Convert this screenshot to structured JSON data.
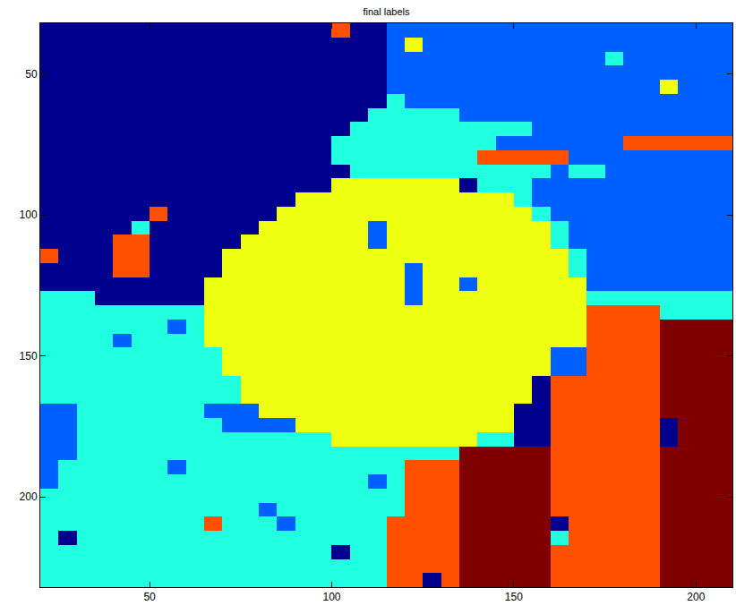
{
  "chart_data": {
    "type": "heatmap",
    "title": "final labels",
    "x": [
      22.5,
      27.5,
      32.5,
      37.5,
      42.5,
      47.5,
      52.5,
      57.5,
      62.5,
      67.5,
      72.5,
      77.5,
      82.5,
      87.5,
      92.5,
      97.5,
      102.5,
      107.5,
      112.5,
      117.5,
      122.5,
      127.5,
      132.5,
      137.5,
      142.5,
      147.5,
      152.5,
      157.5,
      162.5,
      167.5,
      172.5,
      177.5,
      182.5,
      187.5,
      192.5,
      197.5,
      202.5,
      207.5
    ],
    "y": [
      34.5,
      39.5,
      44.5,
      49.5,
      54.5,
      59.5,
      64.5,
      69.5,
      74.5,
      79.5,
      84.5,
      89.5,
      94.5,
      99.5,
      104.5,
      109.5,
      114.5,
      119.5,
      124.5,
      129.5,
      134.5,
      139.5,
      144.5,
      149.5,
      154.5,
      159.5,
      164.5,
      169.5,
      174.5,
      179.5,
      184.5,
      189.5,
      194.5,
      199.5,
      204.5,
      209.5,
      214.5,
      219.5,
      224.5,
      229.5
    ],
    "cells": [
      [
        1,
        1,
        1,
        1,
        1,
        1,
        1,
        1,
        1,
        1,
        1,
        1,
        1,
        1,
        1,
        1,
        5,
        1,
        1,
        2,
        2,
        2,
        2,
        2,
        2,
        2,
        2,
        2,
        2,
        2,
        2,
        2,
        2,
        2,
        2,
        2,
        2,
        2
      ],
      [
        1,
        1,
        1,
        1,
        1,
        1,
        1,
        1,
        1,
        1,
        1,
        1,
        1,
        1,
        1,
        1,
        1,
        1,
        1,
        2,
        4,
        2,
        2,
        2,
        2,
        2,
        2,
        2,
        2,
        2,
        2,
        2,
        2,
        2,
        2,
        2,
        2,
        2
      ],
      [
        1,
        1,
        1,
        1,
        1,
        1,
        1,
        1,
        1,
        1,
        1,
        1,
        1,
        1,
        1,
        1,
        1,
        1,
        1,
        2,
        2,
        2,
        2,
        2,
        2,
        2,
        2,
        2,
        2,
        2,
        2,
        3,
        2,
        2,
        2,
        2,
        2,
        2
      ],
      [
        1,
        1,
        1,
        1,
        1,
        1,
        1,
        1,
        1,
        1,
        1,
        1,
        1,
        1,
        1,
        1,
        1,
        1,
        1,
        2,
        2,
        2,
        2,
        2,
        2,
        2,
        2,
        2,
        2,
        2,
        2,
        2,
        2,
        2,
        2,
        2,
        2,
        2
      ],
      [
        1,
        1,
        1,
        1,
        1,
        1,
        1,
        1,
        1,
        1,
        1,
        1,
        1,
        1,
        1,
        1,
        1,
        1,
        1,
        2,
        2,
        2,
        2,
        2,
        2,
        2,
        2,
        2,
        2,
        2,
        2,
        2,
        2,
        2,
        4,
        2,
        2,
        2
      ],
      [
        1,
        1,
        1,
        1,
        1,
        1,
        1,
        1,
        1,
        1,
        1,
        1,
        1,
        1,
        1,
        1,
        1,
        1,
        1,
        3,
        2,
        2,
        2,
        2,
        2,
        2,
        2,
        2,
        2,
        2,
        2,
        2,
        2,
        2,
        2,
        2,
        2,
        2
      ],
      [
        1,
        1,
        1,
        1,
        1,
        1,
        1,
        1,
        1,
        1,
        1,
        1,
        1,
        1,
        1,
        1,
        1,
        1,
        3,
        3,
        3,
        3,
        3,
        2,
        2,
        2,
        2,
        2,
        2,
        2,
        2,
        2,
        2,
        2,
        2,
        2,
        2,
        2
      ],
      [
        1,
        1,
        1,
        1,
        1,
        1,
        1,
        1,
        1,
        1,
        1,
        1,
        1,
        1,
        1,
        1,
        1,
        3,
        3,
        3,
        3,
        3,
        3,
        3,
        3,
        3,
        3,
        2,
        2,
        2,
        2,
        2,
        2,
        2,
        2,
        2,
        2,
        2
      ],
      [
        1,
        1,
        1,
        1,
        1,
        1,
        1,
        1,
        1,
        1,
        1,
        1,
        1,
        1,
        1,
        1,
        3,
        3,
        3,
        3,
        3,
        3,
        3,
        3,
        3,
        2,
        2,
        2,
        2,
        2,
        2,
        2,
        5,
        5,
        5,
        5,
        5,
        5
      ],
      [
        1,
        1,
        1,
        1,
        1,
        1,
        1,
        1,
        1,
        1,
        1,
        1,
        1,
        1,
        1,
        1,
        3,
        3,
        3,
        3,
        3,
        3,
        3,
        3,
        5,
        5,
        5,
        5,
        5,
        2,
        2,
        2,
        2,
        2,
        2,
        2,
        2,
        2
      ],
      [
        1,
        1,
        1,
        1,
        1,
        1,
        1,
        1,
        1,
        1,
        1,
        1,
        1,
        1,
        1,
        1,
        1,
        3,
        3,
        3,
        3,
        3,
        3,
        3,
        3,
        3,
        3,
        3,
        2,
        3,
        3,
        2,
        2,
        2,
        2,
        2,
        2,
        2
      ],
      [
        1,
        1,
        1,
        1,
        1,
        1,
        1,
        1,
        1,
        1,
        1,
        1,
        1,
        1,
        1,
        1,
        4,
        4,
        4,
        4,
        4,
        4,
        4,
        1,
        3,
        3,
        3,
        2,
        2,
        2,
        2,
        2,
        2,
        2,
        2,
        2,
        2,
        2
      ],
      [
        1,
        1,
        1,
        1,
        1,
        1,
        1,
        1,
        1,
        1,
        1,
        1,
        1,
        1,
        4,
        4,
        4,
        4,
        4,
        4,
        4,
        4,
        4,
        4,
        4,
        4,
        3,
        2,
        2,
        2,
        2,
        2,
        2,
        2,
        2,
        2,
        2,
        2
      ],
      [
        1,
        1,
        1,
        1,
        1,
        1,
        5,
        1,
        1,
        1,
        1,
        1,
        1,
        4,
        4,
        4,
        4,
        4,
        4,
        4,
        4,
        4,
        4,
        4,
        4,
        4,
        4,
        3,
        2,
        2,
        2,
        2,
        2,
        2,
        2,
        2,
        2,
        2
      ],
      [
        1,
        1,
        1,
        1,
        1,
        3,
        1,
        1,
        1,
        1,
        1,
        1,
        4,
        4,
        4,
        4,
        4,
        4,
        2,
        4,
        4,
        4,
        4,
        4,
        4,
        4,
        4,
        4,
        3,
        2,
        2,
        2,
        2,
        2,
        2,
        2,
        2,
        2
      ],
      [
        1,
        1,
        1,
        1,
        5,
        5,
        1,
        1,
        1,
        1,
        1,
        4,
        4,
        4,
        4,
        4,
        4,
        4,
        2,
        4,
        4,
        4,
        4,
        4,
        4,
        4,
        4,
        4,
        3,
        2,
        2,
        2,
        2,
        2,
        2,
        2,
        2,
        2
      ],
      [
        5,
        1,
        1,
        1,
        5,
        5,
        1,
        1,
        1,
        1,
        4,
        4,
        4,
        4,
        4,
        4,
        4,
        4,
        4,
        4,
        4,
        4,
        4,
        4,
        4,
        4,
        4,
        4,
        4,
        3,
        2,
        2,
        2,
        2,
        2,
        2,
        2,
        2
      ],
      [
        1,
        1,
        1,
        1,
        5,
        5,
        1,
        1,
        1,
        1,
        4,
        4,
        4,
        4,
        4,
        4,
        4,
        4,
        4,
        4,
        2,
        4,
        4,
        4,
        4,
        4,
        4,
        4,
        4,
        3,
        2,
        2,
        2,
        2,
        2,
        2,
        2,
        2
      ],
      [
        1,
        1,
        1,
        1,
        1,
        1,
        1,
        1,
        1,
        4,
        4,
        4,
        4,
        4,
        4,
        4,
        4,
        4,
        4,
        4,
        2,
        4,
        4,
        2,
        4,
        4,
        4,
        4,
        4,
        4,
        2,
        2,
        2,
        2,
        2,
        2,
        2,
        2
      ],
      [
        3,
        3,
        3,
        1,
        1,
        1,
        1,
        1,
        1,
        4,
        4,
        4,
        4,
        4,
        4,
        4,
        4,
        4,
        4,
        4,
        2,
        4,
        4,
        4,
        4,
        4,
        4,
        4,
        4,
        4,
        3,
        3,
        3,
        3,
        3,
        3,
        3,
        3
      ],
      [
        3,
        3,
        3,
        3,
        3,
        3,
        3,
        3,
        3,
        4,
        4,
        4,
        4,
        4,
        4,
        4,
        4,
        4,
        4,
        4,
        4,
        4,
        4,
        4,
        4,
        4,
        4,
        4,
        4,
        4,
        5,
        5,
        5,
        5,
        3,
        3,
        3,
        3
      ],
      [
        3,
        3,
        3,
        3,
        3,
        3,
        3,
        2,
        3,
        4,
        4,
        4,
        4,
        4,
        4,
        4,
        4,
        4,
        4,
        4,
        4,
        4,
        4,
        4,
        4,
        4,
        4,
        4,
        4,
        4,
        5,
        5,
        5,
        5,
        6,
        6,
        6,
        6
      ],
      [
        3,
        3,
        3,
        3,
        2,
        3,
        3,
        3,
        3,
        4,
        4,
        4,
        4,
        4,
        4,
        4,
        4,
        4,
        4,
        4,
        4,
        4,
        4,
        4,
        4,
        4,
        4,
        4,
        4,
        4,
        5,
        5,
        5,
        5,
        6,
        6,
        6,
        6
      ],
      [
        3,
        3,
        3,
        3,
        3,
        3,
        3,
        3,
        3,
        3,
        4,
        4,
        4,
        4,
        4,
        4,
        4,
        4,
        4,
        4,
        4,
        4,
        4,
        4,
        4,
        4,
        4,
        4,
        2,
        2,
        5,
        5,
        5,
        5,
        6,
        6,
        6,
        6
      ],
      [
        3,
        3,
        3,
        3,
        3,
        3,
        3,
        3,
        3,
        3,
        4,
        4,
        4,
        4,
        4,
        4,
        4,
        4,
        4,
        4,
        4,
        4,
        4,
        4,
        4,
        4,
        4,
        4,
        2,
        2,
        5,
        5,
        5,
        5,
        6,
        6,
        6,
        6
      ],
      [
        3,
        3,
        3,
        3,
        3,
        3,
        3,
        3,
        3,
        3,
        3,
        4,
        4,
        4,
        4,
        4,
        4,
        4,
        4,
        4,
        4,
        4,
        4,
        4,
        4,
        4,
        4,
        1,
        5,
        5,
        5,
        5,
        5,
        5,
        6,
        6,
        6,
        6
      ],
      [
        3,
        3,
        3,
        3,
        3,
        3,
        3,
        3,
        3,
        3,
        3,
        4,
        4,
        4,
        4,
        4,
        4,
        4,
        4,
        4,
        4,
        4,
        4,
        4,
        4,
        4,
        4,
        1,
        5,
        5,
        5,
        5,
        5,
        5,
        6,
        6,
        6,
        6
      ],
      [
        2,
        2,
        3,
        3,
        3,
        3,
        3,
        3,
        3,
        2,
        2,
        2,
        4,
        4,
        4,
        4,
        4,
        4,
        4,
        4,
        4,
        4,
        4,
        4,
        4,
        4,
        1,
        1,
        5,
        5,
        5,
        5,
        5,
        5,
        6,
        6,
        6,
        6
      ],
      [
        2,
        2,
        3,
        3,
        3,
        3,
        3,
        3,
        3,
        3,
        2,
        2,
        2,
        2,
        4,
        4,
        4,
        4,
        4,
        4,
        4,
        4,
        4,
        4,
        4,
        4,
        1,
        1,
        5,
        5,
        5,
        5,
        5,
        5,
        1,
        6,
        6,
        6
      ],
      [
        2,
        2,
        3,
        3,
        3,
        3,
        3,
        3,
        3,
        3,
        3,
        3,
        3,
        3,
        3,
        3,
        4,
        4,
        4,
        4,
        4,
        4,
        4,
        4,
        3,
        3,
        1,
        1,
        5,
        5,
        5,
        5,
        5,
        5,
        1,
        6,
        6,
        6
      ],
      [
        2,
        2,
        3,
        3,
        3,
        3,
        3,
        3,
        3,
        3,
        3,
        3,
        3,
        3,
        3,
        3,
        3,
        3,
        3,
        3,
        3,
        3,
        3,
        6,
        6,
        6,
        6,
        6,
        5,
        5,
        5,
        5,
        5,
        5,
        6,
        6,
        6,
        6
      ],
      [
        2,
        3,
        3,
        3,
        3,
        3,
        3,
        2,
        3,
        3,
        3,
        3,
        3,
        3,
        3,
        3,
        3,
        3,
        3,
        3,
        5,
        5,
        5,
        6,
        6,
        6,
        6,
        6,
        5,
        5,
        5,
        5,
        5,
        5,
        6,
        6,
        6,
        6
      ],
      [
        2,
        3,
        3,
        3,
        3,
        3,
        3,
        3,
        3,
        3,
        3,
        3,
        3,
        3,
        3,
        3,
        3,
        3,
        2,
        3,
        5,
        5,
        5,
        6,
        6,
        6,
        6,
        6,
        5,
        5,
        5,
        5,
        5,
        5,
        6,
        6,
        6,
        6
      ],
      [
        3,
        3,
        3,
        3,
        3,
        3,
        3,
        3,
        3,
        3,
        3,
        3,
        3,
        3,
        3,
        3,
        3,
        3,
        3,
        3,
        5,
        5,
        5,
        6,
        6,
        6,
        6,
        6,
        5,
        5,
        5,
        5,
        5,
        5,
        6,
        6,
        6,
        6
      ],
      [
        3,
        3,
        3,
        3,
        3,
        3,
        3,
        3,
        3,
        3,
        3,
        3,
        2,
        3,
        3,
        3,
        3,
        3,
        3,
        3,
        5,
        5,
        5,
        6,
        6,
        6,
        6,
        6,
        5,
        5,
        5,
        5,
        5,
        5,
        6,
        6,
        6,
        6
      ],
      [
        3,
        3,
        3,
        3,
        3,
        3,
        3,
        3,
        3,
        5,
        3,
        3,
        3,
        2,
        3,
        3,
        3,
        3,
        3,
        5,
        5,
        5,
        5,
        6,
        6,
        6,
        6,
        6,
        1,
        5,
        5,
        5,
        5,
        5,
        6,
        6,
        6,
        6
      ],
      [
        3,
        1,
        3,
        3,
        3,
        3,
        3,
        3,
        3,
        3,
        3,
        3,
        3,
        3,
        3,
        3,
        3,
        3,
        3,
        5,
        5,
        5,
        5,
        6,
        6,
        6,
        6,
        6,
        3,
        5,
        5,
        5,
        5,
        5,
        6,
        6,
        6,
        6
      ],
      [
        3,
        3,
        3,
        3,
        3,
        3,
        3,
        3,
        3,
        3,
        3,
        3,
        3,
        3,
        3,
        3,
        1,
        3,
        3,
        5,
        5,
        5,
        5,
        6,
        6,
        6,
        6,
        6,
        5,
        5,
        5,
        5,
        5,
        5,
        6,
        6,
        6,
        6
      ],
      [
        3,
        3,
        3,
        3,
        3,
        3,
        3,
        3,
        3,
        3,
        3,
        3,
        3,
        3,
        3,
        3,
        3,
        3,
        3,
        5,
        5,
        5,
        5,
        6,
        6,
        6,
        6,
        6,
        5,
        5,
        5,
        5,
        5,
        5,
        6,
        6,
        6,
        6
      ],
      [
        3,
        3,
        3,
        3,
        3,
        3,
        3,
        3,
        3,
        3,
        3,
        3,
        3,
        3,
        3,
        3,
        3,
        3,
        3,
        5,
        5,
        1,
        5,
        6,
        6,
        6,
        6,
        6,
        5,
        5,
        5,
        5,
        5,
        5,
        6,
        6,
        6,
        6
      ]
    ],
    "colors": [
      "#00008f",
      "#0060ff",
      "#20ffdf",
      "#efff10",
      "#ff5000",
      "#800000"
    ],
    "xlim": [
      20,
      210
    ],
    "ylim": [
      232,
      32
    ],
    "xticks": [
      50,
      100,
      150,
      200
    ],
    "yticks": [
      50,
      100,
      150,
      200
    ]
  }
}
